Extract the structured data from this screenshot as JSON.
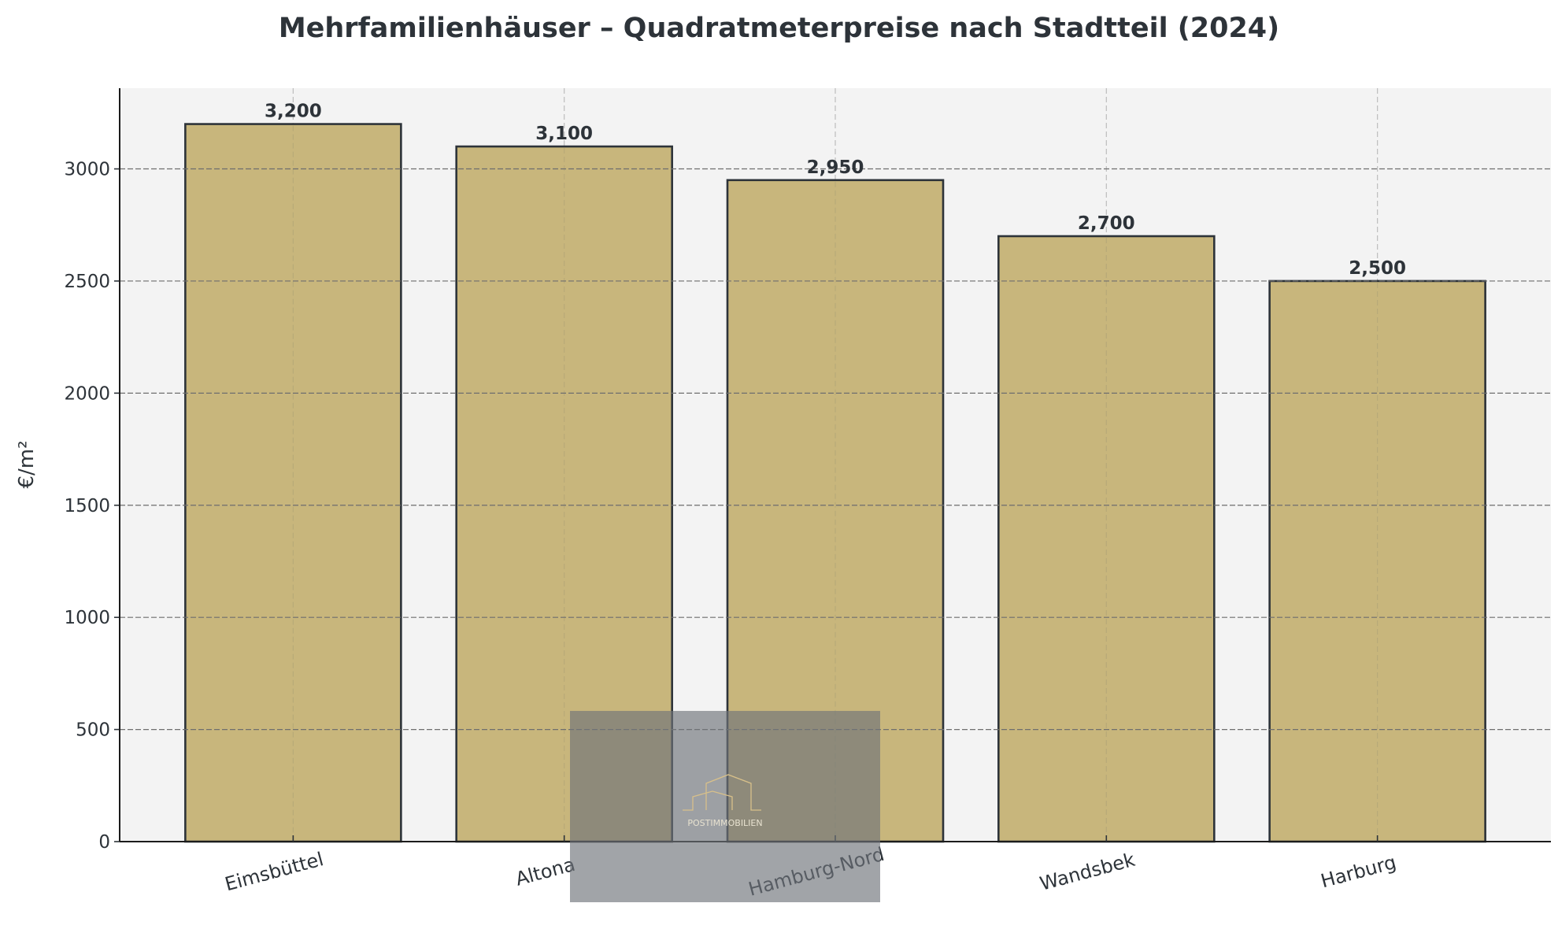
{
  "chart_data": {
    "type": "bar",
    "title": "Mehrfamilienhäuser – Quadratmeterpreise nach Stadtteil (2024)",
    "xlabel": "",
    "ylabel": "€/m²",
    "categories": [
      "Eimsbüttel",
      "Altona",
      "Hamburg-Nord",
      "Wandsbek",
      "Harburg"
    ],
    "values": [
      3200,
      3100,
      2950,
      2700,
      2500
    ],
    "data_labels": [
      "3,200",
      "3,100",
      "2,950",
      "2,700",
      "2,500"
    ],
    "ylim": [
      0,
      3360
    ],
    "yticks": [
      0,
      500,
      1000,
      1500,
      2000,
      2500,
      3000
    ],
    "grid": true,
    "bar_color": "#c8b67c",
    "bar_edge_color": "#2d3339",
    "background_color": "#f3f3f3"
  },
  "watermark": {
    "text": "POSTIMMOBILIEN"
  }
}
